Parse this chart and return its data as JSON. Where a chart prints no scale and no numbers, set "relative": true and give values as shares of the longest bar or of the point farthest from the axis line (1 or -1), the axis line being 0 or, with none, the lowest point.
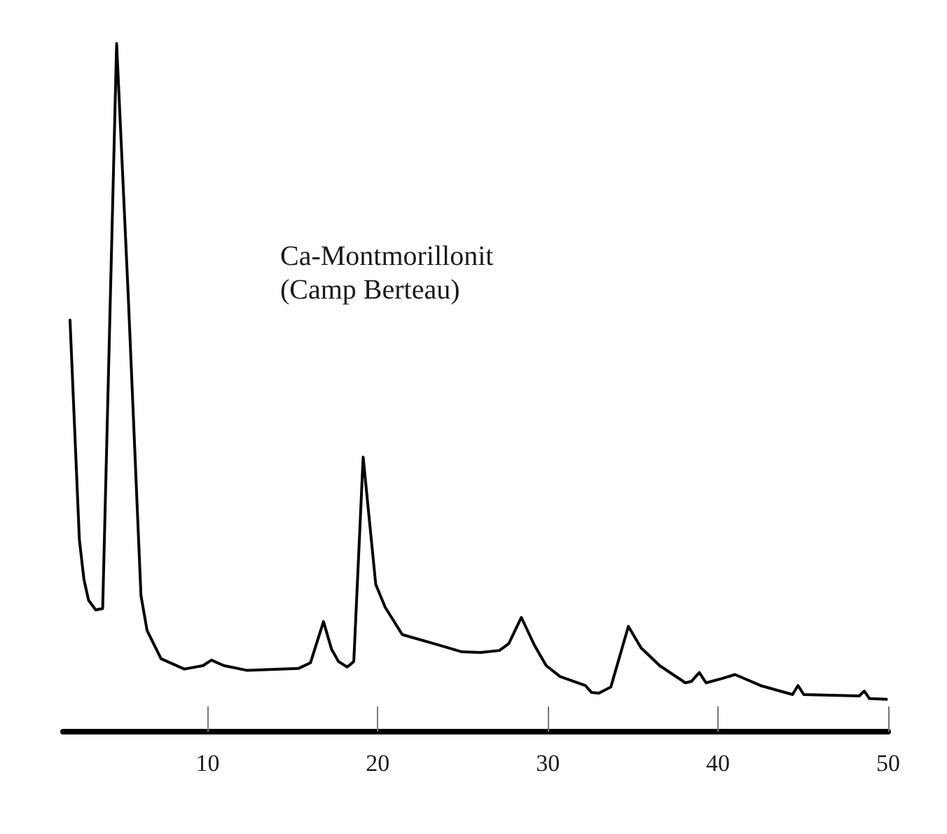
{
  "chart_data": {
    "type": "line",
    "relative": true,
    "annotations": [
      "Ca-Montmorillonit",
      "(Camp Berteau)"
    ],
    "x": [
      1.91,
      2.46,
      2.73,
      3.0,
      3.42,
      3.83,
      4.65,
      5.34,
      6.08,
      6.44,
      7.26,
      8.63,
      9.73,
      10.22,
      10.96,
      12.34,
      15.35,
      16.04,
      16.81,
      17.28,
      17.69,
      18.2,
      18.59,
      19.14,
      19.88,
      20.43,
      21.44,
      23.3,
      24.95,
      26.05,
      27.15,
      27.7,
      28.44,
      29.2,
      29.9,
      30.72,
      32.2,
      32.57,
      33.0,
      33.7,
      34.73,
      35.47,
      36.57,
      38.08,
      38.43,
      38.9,
      39.3,
      40.2,
      41.0,
      42.5,
      44.38,
      44.7,
      45.04,
      48.3,
      48.6,
      48.9,
      49.9
    ],
    "series": [
      {
        "color": "#000000",
        "values": [
          0.598,
          0.279,
          0.221,
          0.191,
          0.177,
          0.179,
          1,
          0.629,
          0.198,
          0.147,
          0.106,
          0.091,
          0.096,
          0.104,
          0.096,
          0.089,
          0.092,
          0.1,
          0.16,
          0.12,
          0.102,
          0.094,
          0.102,
          0.399,
          0.214,
          0.181,
          0.141,
          0.128,
          0.116,
          0.115,
          0.118,
          0.128,
          0.166,
          0.126,
          0.096,
          0.08,
          0.067,
          0.057,
          0.056,
          0.065,
          0.153,
          0.122,
          0.096,
          0.071,
          0.073,
          0.086,
          0.071,
          0.077,
          0.083,
          0.067,
          0.054,
          0.067,
          0.054,
          0.052,
          0.059,
          0.048,
          0.047
        ]
      }
    ],
    "xlim": [
      1.5,
      50
    ],
    "xticks": [
      10,
      20,
      30,
      40,
      50
    ],
    "grid": false,
    "marker": "none",
    "line_style": "solid"
  }
}
